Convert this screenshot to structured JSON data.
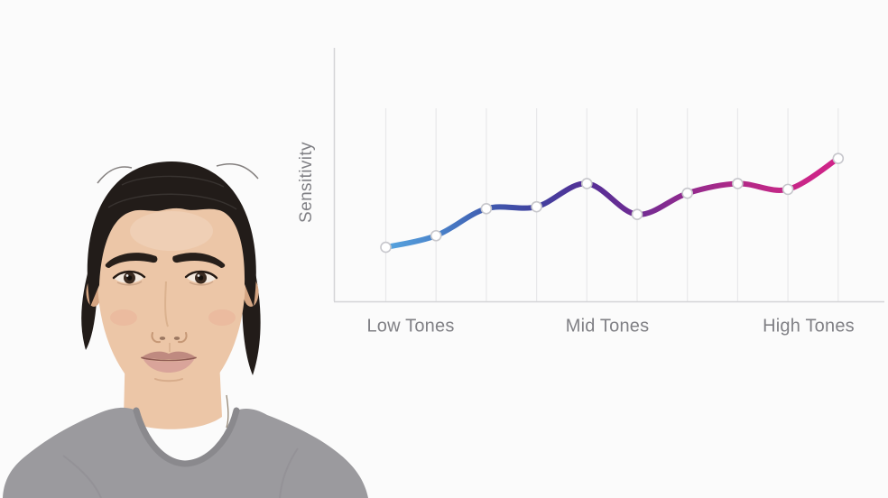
{
  "scene": {
    "background": "#fbfbfb"
  },
  "portrait": {
    "alt": "young man with dark hair pulled back wearing a gray crew-neck t-shirt, facing camera",
    "colors": {
      "skin": "#ecc6a7",
      "skin_shadow": "#d4a583",
      "hair": "#221c19",
      "brow": "#271f1a",
      "iris": "#3a2a20",
      "lips_upper": "#bf8a80",
      "lips_lower": "#d9a49a",
      "shirt": "#9b9a9e",
      "shirt_collar": "#8a898d"
    }
  },
  "chart_data": {
    "type": "line",
    "title": "",
    "ylabel": "Sensitivity",
    "xlabel": "",
    "x_tick_labels": [
      "Low Tones",
      "Mid Tones",
      "High Tones"
    ],
    "x": [
      1,
      2,
      3,
      4,
      5,
      6,
      7,
      8,
      9,
      10
    ],
    "values": [
      28,
      34,
      48,
      49,
      61,
      45,
      56,
      61,
      58,
      74
    ],
    "ylim": [
      0,
      100
    ],
    "y_ticks_visible": false,
    "grid": "vertical-gridline-per-point",
    "legend": "none",
    "line_gradient": [
      "#57A5DF",
      "#4A84CB",
      "#3F5CB0",
      "#41419F",
      "#542F96",
      "#702C93",
      "#922A8E",
      "#B02987",
      "#C62787",
      "#D02389"
    ],
    "point_fill": "#ffffff",
    "point_stroke": "#c7c7cc",
    "axis_color": "#d4d4d7",
    "grid_color": "#e8e8ea",
    "label_color": "#808085"
  }
}
